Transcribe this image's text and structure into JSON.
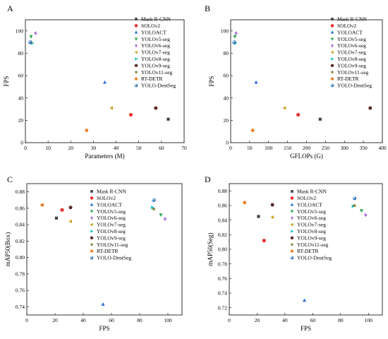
{
  "models": [
    {
      "name": "Mask R-CNN",
      "color": "#404040",
      "marker": "square"
    },
    {
      "name": "SOLOv2",
      "color": "#e8322f",
      "marker": "circle"
    },
    {
      "name": "YOLOACT",
      "color": "#2f6fd8",
      "marker": "triangle-up"
    },
    {
      "name": "YOLOv5-seg",
      "color": "#2ea84a",
      "marker": "triangle-down"
    },
    {
      "name": "YOLOv6-seg",
      "color": "#b276e0",
      "marker": "diamond"
    },
    {
      "name": "YOLOv7-seg",
      "color": "#c8a21e",
      "marker": "triangle-left"
    },
    {
      "name": "YOLOv8-seg",
      "color": "#22c0c6",
      "marker": "triangle-right"
    },
    {
      "name": "YOLOv9-seg",
      "color": "#5a2a2a",
      "marker": "hexagon"
    },
    {
      "name": "YOLOv11-seg",
      "color": "#7a7a2a",
      "marker": "star"
    },
    {
      "name": "RT-DETR",
      "color": "#f07c1e",
      "marker": "pentagon"
    },
    {
      "name": "YOLO-DentSeg",
      "color": "#4a90d9",
      "marker": "sphere"
    }
  ],
  "chart_data": [
    {
      "panel": "A",
      "type": "scatter",
      "xlabel": "Parameters (M)",
      "ylabel": "FPS",
      "xlim": [
        0,
        70
      ],
      "ylim": [
        0,
        110
      ],
      "xticks": [
        0,
        10,
        20,
        30,
        40,
        50,
        60,
        70
      ],
      "yticks": [
        0,
        20,
        40,
        60,
        80,
        100
      ],
      "legend": "top-right",
      "points": [
        {
          "series": "Mask R-CNN",
          "x": 63,
          "y": 21
        },
        {
          "series": "SOLOv2",
          "x": 46.5,
          "y": 25
        },
        {
          "series": "YOLOACT",
          "x": 35,
          "y": 54
        },
        {
          "series": "YOLOv5-seg",
          "x": 2.5,
          "y": 95
        },
        {
          "series": "YOLOv6-seg",
          "x": 4.5,
          "y": 98
        },
        {
          "series": "YOLOv7-seg",
          "x": 38,
          "y": 31
        },
        {
          "series": "YOLOv8-seg",
          "x": 3,
          "y": 89
        },
        {
          "series": "YOLOv9-seg",
          "x": 57.5,
          "y": 31
        },
        {
          "series": "YOLOv11-seg",
          "x": 2.5,
          "y": 90
        },
        {
          "series": "RT-DETR",
          "x": 27,
          "y": 11
        },
        {
          "series": "YOLO-DentSeg",
          "x": 2,
          "y": 90
        }
      ]
    },
    {
      "panel": "B",
      "type": "scatter",
      "xlabel": "GFLOPs (G)",
      "ylabel": "FPS",
      "xlim": [
        0,
        400
      ],
      "ylim": [
        0,
        110
      ],
      "xticks": [
        0,
        50,
        100,
        150,
        200,
        250,
        300,
        350,
        400
      ],
      "yticks": [
        0,
        20,
        40,
        60,
        80,
        100
      ],
      "legend": "top-right",
      "points": [
        {
          "series": "Mask R-CNN",
          "x": 236,
          "y": 21
        },
        {
          "series": "SOLOv2",
          "x": 178,
          "y": 25
        },
        {
          "series": "YOLOACT",
          "x": 67,
          "y": 54
        },
        {
          "series": "YOLOv5-seg",
          "x": 11,
          "y": 95
        },
        {
          "series": "YOLOv6-seg",
          "x": 14,
          "y": 98
        },
        {
          "series": "YOLOv7-seg",
          "x": 142,
          "y": 31
        },
        {
          "series": "YOLOv8-seg",
          "x": 12,
          "y": 89
        },
        {
          "series": "YOLOv9-seg",
          "x": 368,
          "y": 31
        },
        {
          "series": "YOLOv11-seg",
          "x": 10,
          "y": 90
        },
        {
          "series": "RT-DETR",
          "x": 58,
          "y": 11
        },
        {
          "series": "YOLO-DentSeg",
          "x": 9,
          "y": 90
        }
      ]
    },
    {
      "panel": "C",
      "type": "scatter",
      "xlabel": "FPS",
      "ylabel": "mAP50(Box)",
      "xlim": [
        0,
        110
      ],
      "ylim": [
        0.73,
        0.89
      ],
      "xticks": [
        0,
        20,
        40,
        60,
        80,
        100
      ],
      "yticks": [
        0.74,
        0.76,
        0.78,
        0.8,
        0.82,
        0.84,
        0.86,
        0.88
      ],
      "ytick_labels": [
        "0.74",
        "0.76",
        "0.78",
        "0.80",
        "0.82",
        "0.84",
        "0.86",
        "0.88"
      ],
      "legend": "top-left",
      "points": [
        {
          "series": "Mask R-CNN",
          "x": 21,
          "y": 0.848
        },
        {
          "series": "SOLOv2",
          "x": 25,
          "y": 0.858
        },
        {
          "series": "YOLOACT",
          "x": 54,
          "y": 0.743
        },
        {
          "series": "YOLOv5-seg",
          "x": 95,
          "y": 0.852
        },
        {
          "series": "YOLOv6-seg",
          "x": 98,
          "y": 0.847
        },
        {
          "series": "YOLOv7-seg",
          "x": 31,
          "y": 0.844
        },
        {
          "series": "YOLOv8-seg",
          "x": 89,
          "y": 0.861
        },
        {
          "series": "YOLOv9-seg",
          "x": 31,
          "y": 0.861
        },
        {
          "series": "YOLOv11-seg",
          "x": 90,
          "y": 0.859
        },
        {
          "series": "RT-DETR",
          "x": 11,
          "y": 0.864
        },
        {
          "series": "YOLO-DentSeg",
          "x": 90,
          "y": 0.87
        }
      ]
    },
    {
      "panel": "D",
      "type": "scatter",
      "xlabel": "FPS",
      "ylabel": "mAP50(Seg)",
      "xlim": [
        0,
        110
      ],
      "ylim": [
        0.71,
        0.89
      ],
      "xticks": [
        0,
        20,
        40,
        60,
        80,
        100
      ],
      "yticks": [
        0.72,
        0.74,
        0.76,
        0.78,
        0.8,
        0.82,
        0.84,
        0.86,
        0.88
      ],
      "ytick_labels": [
        "0.72",
        "0.74",
        "0.76",
        "0.78",
        "0.80",
        "0.82",
        "0.84",
        "0.86",
        "0.88"
      ],
      "legend": "top-left",
      "points": [
        {
          "series": "Mask R-CNN",
          "x": 21,
          "y": 0.845
        },
        {
          "series": "SOLOv2",
          "x": 25,
          "y": 0.812
        },
        {
          "series": "YOLOACT",
          "x": 54,
          "y": 0.73
        },
        {
          "series": "YOLOv5-seg",
          "x": 95,
          "y": 0.853
        },
        {
          "series": "YOLOv6-seg",
          "x": 98,
          "y": 0.847
        },
        {
          "series": "YOLOv7-seg",
          "x": 31,
          "y": 0.844
        },
        {
          "series": "YOLOv8-seg",
          "x": 89,
          "y": 0.859
        },
        {
          "series": "YOLOv9-seg",
          "x": 31,
          "y": 0.861
        },
        {
          "series": "YOLOv11-seg",
          "x": 90,
          "y": 0.86
        },
        {
          "series": "RT-DETR",
          "x": 11,
          "y": 0.864
        },
        {
          "series": "YOLO-DentSeg",
          "x": 90,
          "y": 0.87
        }
      ]
    }
  ]
}
